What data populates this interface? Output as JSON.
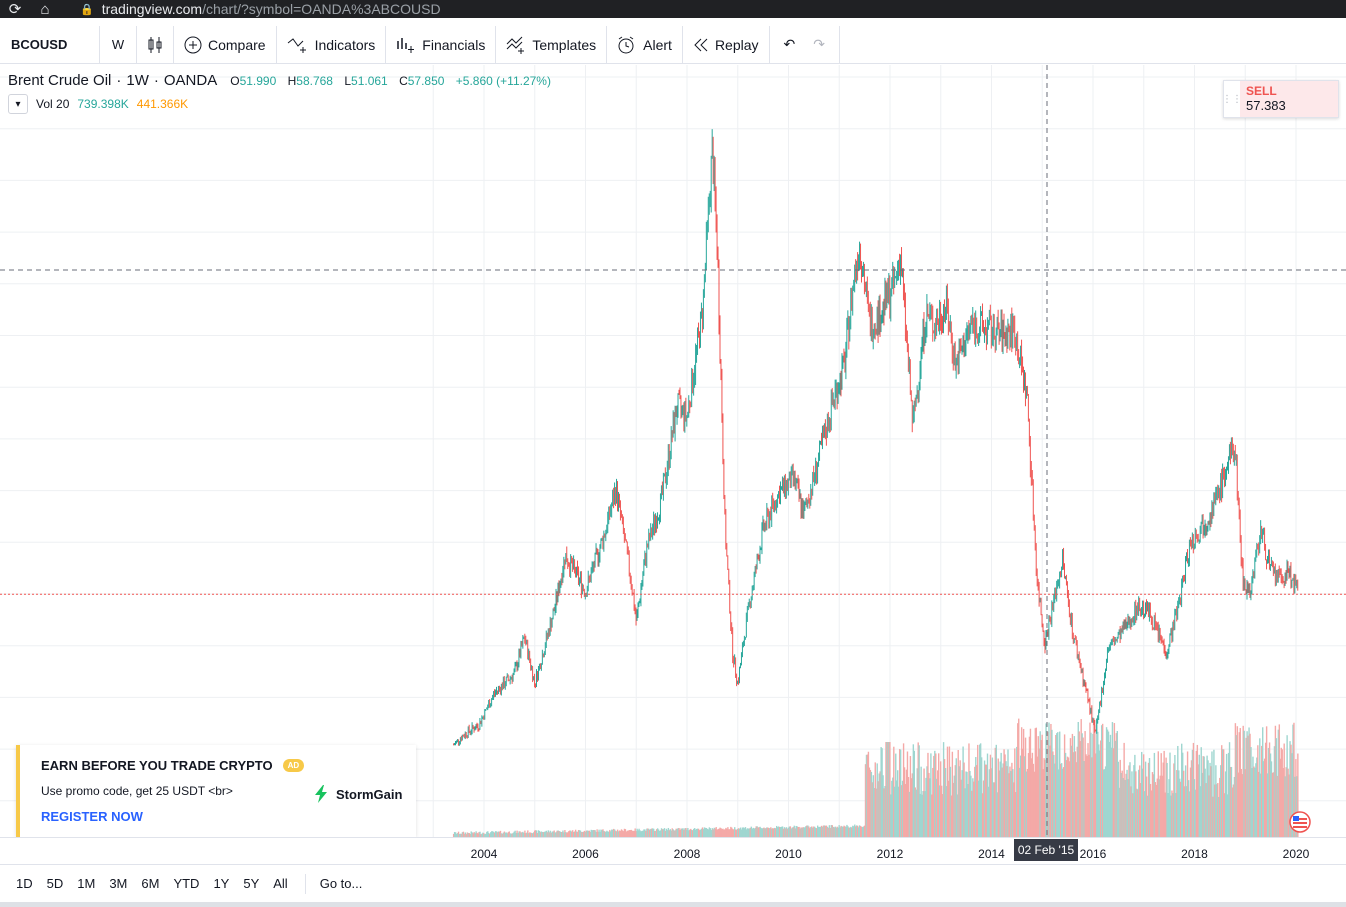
{
  "browser": {
    "url_host": "tradingview.com",
    "url_path": "/chart/?symbol=OANDA%3ABCOUSD"
  },
  "toolbar": {
    "symbol": "BCOUSD",
    "interval": "W",
    "compare_label": "Compare",
    "indicators_label": "Indicators",
    "financials_label": "Financials",
    "templates_label": "Templates",
    "alert_label": "Alert",
    "replay_label": "Replay"
  },
  "legend": {
    "title": "Brent Crude Oil",
    "sep1": "·",
    "timeframe": "1W",
    "sep2": "·",
    "exchange": "OANDA",
    "open_label": "O",
    "open": "51.990",
    "high_label": "H",
    "high": "58.768",
    "low_label": "L",
    "low": "51.061",
    "close_label": "C",
    "close": "57.850",
    "change": "+5.860 (+11.27%)",
    "vol_label": "Vol 20",
    "vol_value": "739.398K",
    "vol_ma": "441.366K"
  },
  "sell_widget": {
    "label": "SELL",
    "price": "57.383"
  },
  "ad": {
    "title": "EARN BEFORE YOU TRADE CRYPTO",
    "badge": "AD",
    "description": "Use promo code, get 25 USDT <br>",
    "link": "REGISTER NOW",
    "brand": "StormGain"
  },
  "time_axis": {
    "ticks": [
      "2004",
      "2006",
      "2008",
      "2010",
      "2012",
      "2014",
      "2016",
      "2018",
      "2020"
    ],
    "crosshair_label": "02 Feb '15"
  },
  "bottom_bar": {
    "ranges": [
      "1D",
      "5D",
      "1M",
      "3M",
      "6M",
      "YTD",
      "1Y",
      "5Y",
      "All"
    ],
    "goto_label": "Go to..."
  },
  "colors": {
    "up": "#26a69a",
    "down": "#ef5350",
    "vol_up": "#9fd6d0",
    "vol_down": "#f4a9a7",
    "grid": "#eef0f3",
    "price_line": "#ef5350"
  },
  "chart_data": {
    "type": "line",
    "title": "Brent Crude Oil · 1W · OANDA",
    "xlabel": "",
    "ylabel": "",
    "x_range": [
      2002.3,
      2020.75
    ],
    "y_range": [
      17,
      156
    ],
    "x": [
      2003.4,
      2003.6,
      2003.9,
      2004.2,
      2004.6,
      2004.8,
      2005.0,
      2005.4,
      2005.6,
      2006.0,
      2006.4,
      2006.6,
      2006.9,
      2007.0,
      2007.2,
      2007.5,
      2007.8,
      2008.0,
      2008.3,
      2008.5,
      2008.6,
      2008.75,
      2008.9,
      2009.0,
      2009.2,
      2009.5,
      2009.8,
      2010.1,
      2010.3,
      2010.5,
      2010.7,
      2010.9,
      2011.1,
      2011.3,
      2011.4,
      2011.6,
      2011.8,
      2012.1,
      2012.2,
      2012.45,
      2012.7,
      2012.9,
      2013.1,
      2013.3,
      2013.6,
      2013.9,
      2014.2,
      2014.45,
      2014.7,
      2014.9,
      2015.05,
      2015.4,
      2015.6,
      2015.9,
      2016.05,
      2016.3,
      2016.5,
      2016.9,
      2017.1,
      2017.45,
      2017.7,
      2017.9,
      2018.1,
      2018.4,
      2018.7,
      2018.8,
      2018.95,
      2019.1,
      2019.3,
      2019.5,
      2019.7,
      2019.85,
      2020.05
    ],
    "values": [
      28,
      30,
      32,
      38,
      42,
      49,
      40,
      55,
      65,
      58,
      70,
      78,
      60,
      52,
      66,
      76,
      94,
      92,
      112,
      144,
      124,
      70,
      46,
      40,
      54,
      70,
      77,
      80,
      73,
      80,
      88,
      96,
      102,
      120,
      126,
      110,
      112,
      118,
      124,
      90,
      112,
      110,
      114,
      102,
      110,
      109,
      108,
      109,
      96,
      60,
      48,
      64,
      50,
      37,
      30,
      47,
      49,
      55,
      54,
      46,
      56,
      67,
      70,
      75,
      84,
      86,
      60,
      58,
      70,
      62,
      60,
      62,
      57.38
    ],
    "current_price": 57.383,
    "volume_note": "volume histogram (Vol 20) at bottom, green/red"
  }
}
